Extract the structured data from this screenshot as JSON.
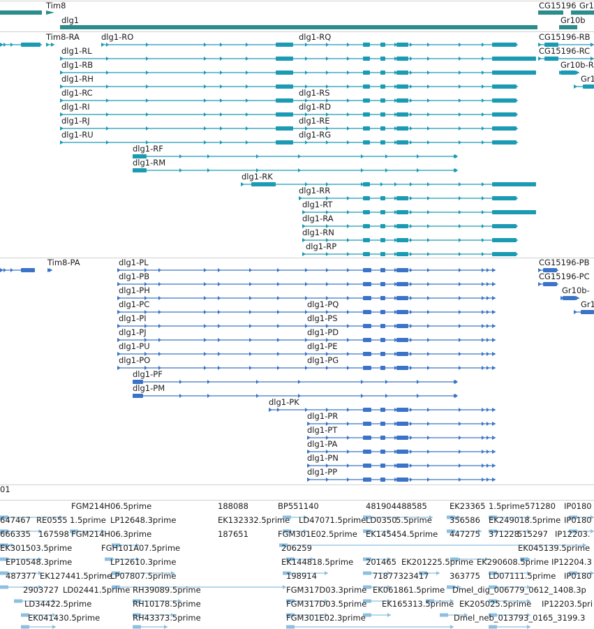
{
  "colors": {
    "gene": "#2b8c8c",
    "transcript": "#1a9ab3",
    "protein": "#3a73c7",
    "est": "#8cbfe0",
    "divider": "#cfcfcf"
  },
  "genes": [
    {
      "label": "Tim8"
    },
    {
      "label": "dlg1"
    },
    {
      "label": "CG15196"
    },
    {
      "label": "Gr1"
    },
    {
      "label": "Gr10b"
    }
  ],
  "transcripts": [
    {
      "label": "Tim8-RA"
    },
    {
      "label": "dlg1-RO"
    },
    {
      "label": "dlg1-RQ"
    },
    {
      "label": "CG15196-RB"
    },
    {
      "label": "dlg1-RL"
    },
    {
      "label": "CG15196-RC"
    },
    {
      "label": "dlg1-RB"
    },
    {
      "label": "Gr10b-R"
    },
    {
      "label": "dlg1-RH"
    },
    {
      "label": "Gr1"
    },
    {
      "label": "dlg1-RC"
    },
    {
      "label": "dlg1-RS"
    },
    {
      "label": "dlg1-RI"
    },
    {
      "label": "dlg1-RD"
    },
    {
      "label": "dlg1-RJ"
    },
    {
      "label": "dlg1-RE"
    },
    {
      "label": "dlg1-RU"
    },
    {
      "label": "dlg1-RG"
    },
    {
      "label": "dlg1-RF"
    },
    {
      "label": "dlg1-RM"
    },
    {
      "label": "dlg1-RK"
    },
    {
      "label": "dlg1-RR"
    },
    {
      "label": "dlg1-RT"
    },
    {
      "label": "dlg1-RA"
    },
    {
      "label": "dlg1-RN"
    },
    {
      "label": "dlg1-RP"
    }
  ],
  "proteins": [
    {
      "label": "Tim8-PA"
    },
    {
      "label": "dlg1-PL"
    },
    {
      "label": "CG15196-PB"
    },
    {
      "label": "dlg1-PB"
    },
    {
      "label": "CG15196-PC"
    },
    {
      "label": "dlg1-PH"
    },
    {
      "label": "Gr10b-"
    },
    {
      "label": "dlg1-PC"
    },
    {
      "label": "dlg1-PQ"
    },
    {
      "label": "Gr1"
    },
    {
      "label": "dlg1-PI"
    },
    {
      "label": "dlg1-PS"
    },
    {
      "label": "dlg1-PJ"
    },
    {
      "label": "dlg1-PD"
    },
    {
      "label": "dlg1-PU"
    },
    {
      "label": "dlg1-PE"
    },
    {
      "label": "dlg1-PO"
    },
    {
      "label": "dlg1-PG"
    },
    {
      "label": "dlg1-PF"
    },
    {
      "label": "dlg1-PM"
    },
    {
      "label": "dlg1-PK"
    },
    {
      "label": "dlg1-PR"
    },
    {
      "label": "dlg1-PT"
    },
    {
      "label": "dlg1-PA"
    },
    {
      "label": "dlg1-PN"
    },
    {
      "label": "dlg1-PP"
    }
  ],
  "track_cutoff_label": "01",
  "ests": [
    "FGM214H06.5prime",
    "188088",
    "BP551140",
    "481904488585",
    "EK23365",
    "1.5prime",
    "571280",
    "IP0180",
    "647467",
    "RE0555",
    "1.5prime",
    "LP12648.3prime",
    "EK132332.5prime",
    "LD47071.5prime",
    "LD0350",
    "5.5prime",
    "356586",
    "EK249018.5prime",
    "IP0180",
    "666335",
    "167598",
    "FGM214H06.3prime",
    "187651",
    "FGM301E02.5prime",
    "EK145454.5prime",
    "447275",
    "371228",
    "515297",
    "IP12203.",
    "EK301503.5prime",
    "FGH101A07.5prime",
    "206259",
    "EK045139.5prime",
    "EP10548.3prime",
    "LP12610.3prime",
    "EK144818.5prime",
    "201465",
    "EK201225.5prime",
    "EK290608.5prime",
    "IP12204.3",
    "487377",
    "EK127441.5prime",
    "LP07807.5prime",
    "198914",
    "71877323417",
    "363775",
    "LD07111.5prime",
    "IP0180",
    "2903727",
    "LD02441.5prime",
    "RH39089.5prime",
    "FGM317D03.3prime",
    "EK061861.5prime",
    "Dmel_dig_006779_0612_1408.3p",
    "LD34422.5prime",
    "RH10178.5prime",
    "FGM317D03.5prime",
    "EK165313.5prime",
    "EK205025.5prime",
    "IP12203.5pri",
    "EK041430.5prime",
    "RH43373.5prime",
    "FGM301E02.3prime",
    "Dmel_neb_013793_0165_3199.3"
  ]
}
